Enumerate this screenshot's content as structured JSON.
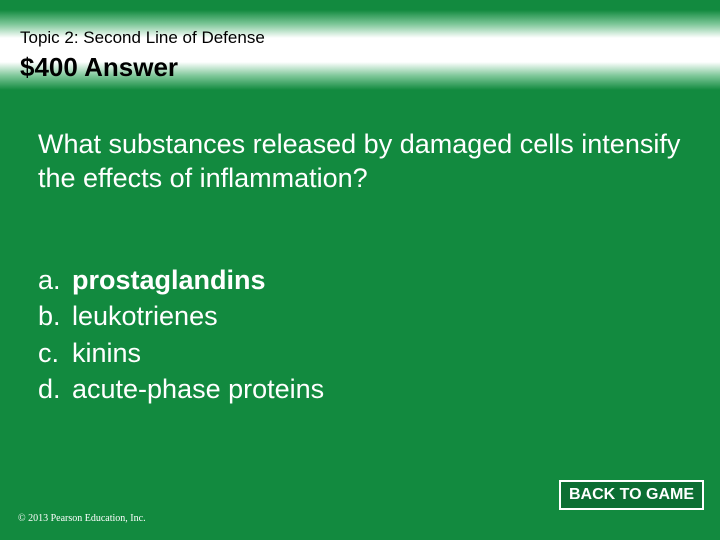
{
  "colors": {
    "background": "#128a3f",
    "band_mid": "#7fc89a",
    "band_center": "#ffffff",
    "text_light": "#ffffff",
    "text_dark": "#000000",
    "button_bg": "#0c6e33",
    "button_border": "#ffffff"
  },
  "header": {
    "topic": "Topic 2: Second Line of Defense",
    "price_answer": "$400 Answer"
  },
  "question": "What substances released by damaged cells intensify the effects of inflammation?",
  "options": [
    {
      "letter": "a.",
      "text": "prostaglandins",
      "highlight": true
    },
    {
      "letter": "b.",
      "text": "leukotrienes",
      "highlight": false
    },
    {
      "letter": "c.",
      "text": "kinins",
      "highlight": false
    },
    {
      "letter": "d.",
      "text": "acute-phase proteins",
      "highlight": false
    }
  ],
  "footer": {
    "copyright": "© 2013 Pearson Education, Inc.",
    "back_label": "BACK TO GAME"
  },
  "typography": {
    "topic_fontsize": 17,
    "price_fontsize": 26,
    "question_fontsize": 27,
    "option_fontsize": 27,
    "button_fontsize": 16,
    "copyright_fontsize": 10
  }
}
